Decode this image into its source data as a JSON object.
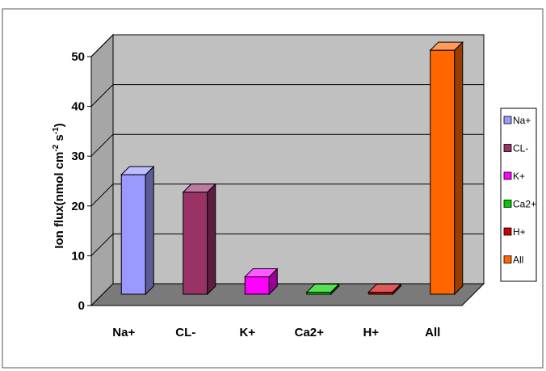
{
  "chart_data": {
    "type": "bar",
    "categories": [
      "Na+",
      "CL-",
      "K+",
      "Ca2+",
      "H+",
      "All"
    ],
    "values": [
      24,
      20.5,
      3.5,
      0.4,
      0.4,
      49
    ],
    "colors": [
      "#9999ff",
      "#993366",
      "#ff00ff",
      "#00cc00",
      "#cc0000",
      "#ff6600"
    ],
    "yticks": [
      0,
      10,
      20,
      30,
      40,
      50
    ],
    "ylim": [
      0,
      50
    ],
    "ylabel": "Ion flux(nmol cm",
    "ylabel_exp1": "-2",
    "ylabel_mid": " s",
    "ylabel_exp2": "-1",
    "ylabel_end": ")",
    "grid": true,
    "legend_position": "right",
    "legend": [
      "Na+",
      "CL-",
      "K+",
      "Ca2+",
      "H+",
      "All"
    ]
  }
}
